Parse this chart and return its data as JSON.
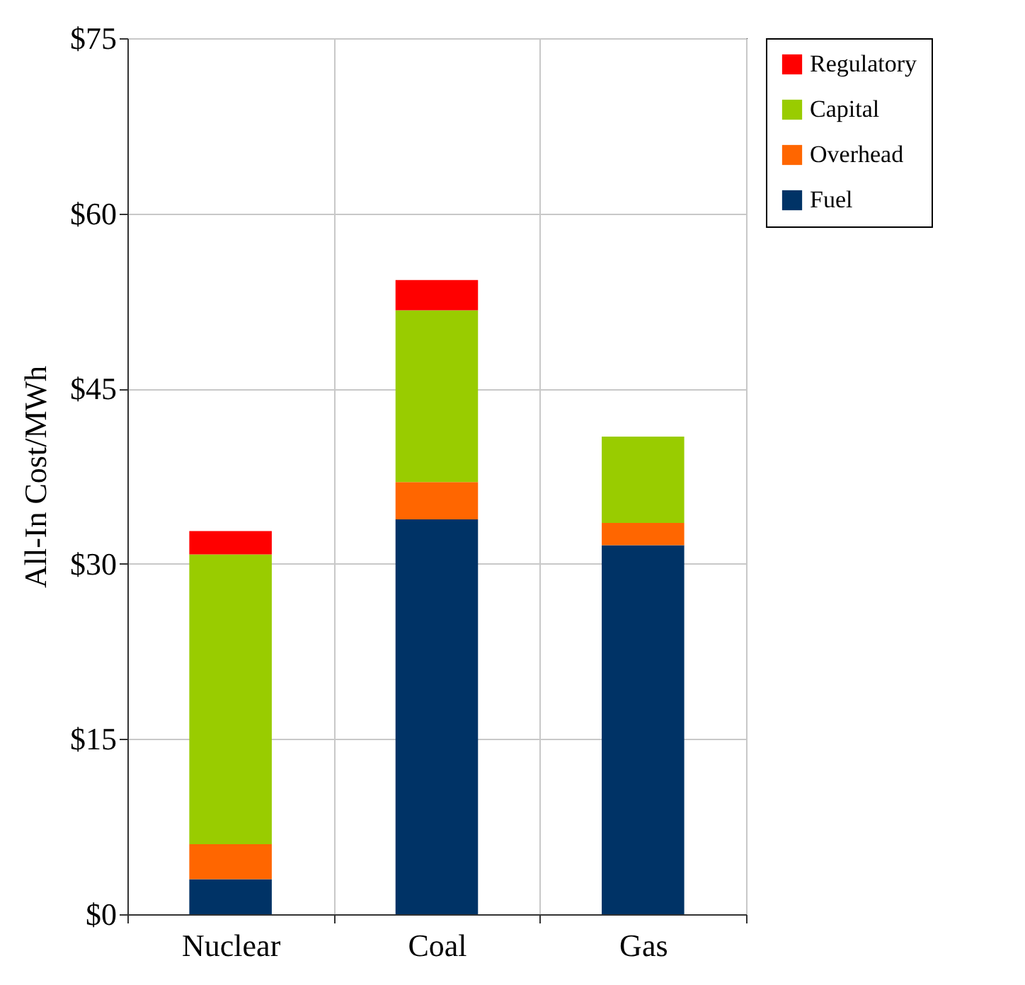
{
  "chart_data": {
    "type": "bar",
    "stacked": true,
    "ylabel": "All-In Cost/MWh",
    "categories": [
      "Nuclear",
      "Coal",
      "Gas"
    ],
    "series": [
      {
        "name": "Fuel",
        "color": "#003366",
        "values": [
          3.0,
          33.8,
          31.6
        ]
      },
      {
        "name": "Overhead",
        "color": "#ff6600",
        "values": [
          3.0,
          3.2,
          1.9
        ]
      },
      {
        "name": "Capital",
        "color": "#99cc00",
        "values": [
          24.8,
          14.7,
          7.4
        ]
      },
      {
        "name": "Regulatory",
        "color": "#ff0000",
        "values": [
          2.0,
          2.6,
          null
        ]
      }
    ],
    "ylim": [
      0,
      75
    ],
    "yticks": [
      {
        "value": 0,
        "label": "$0"
      },
      {
        "value": 15,
        "label": "$15"
      },
      {
        "value": 30,
        "label": "$30"
      },
      {
        "value": 45,
        "label": "$45"
      },
      {
        "value": 60,
        "label": "$60"
      },
      {
        "value": 75,
        "label": "$75"
      }
    ],
    "grid": true,
    "legend": "right"
  }
}
